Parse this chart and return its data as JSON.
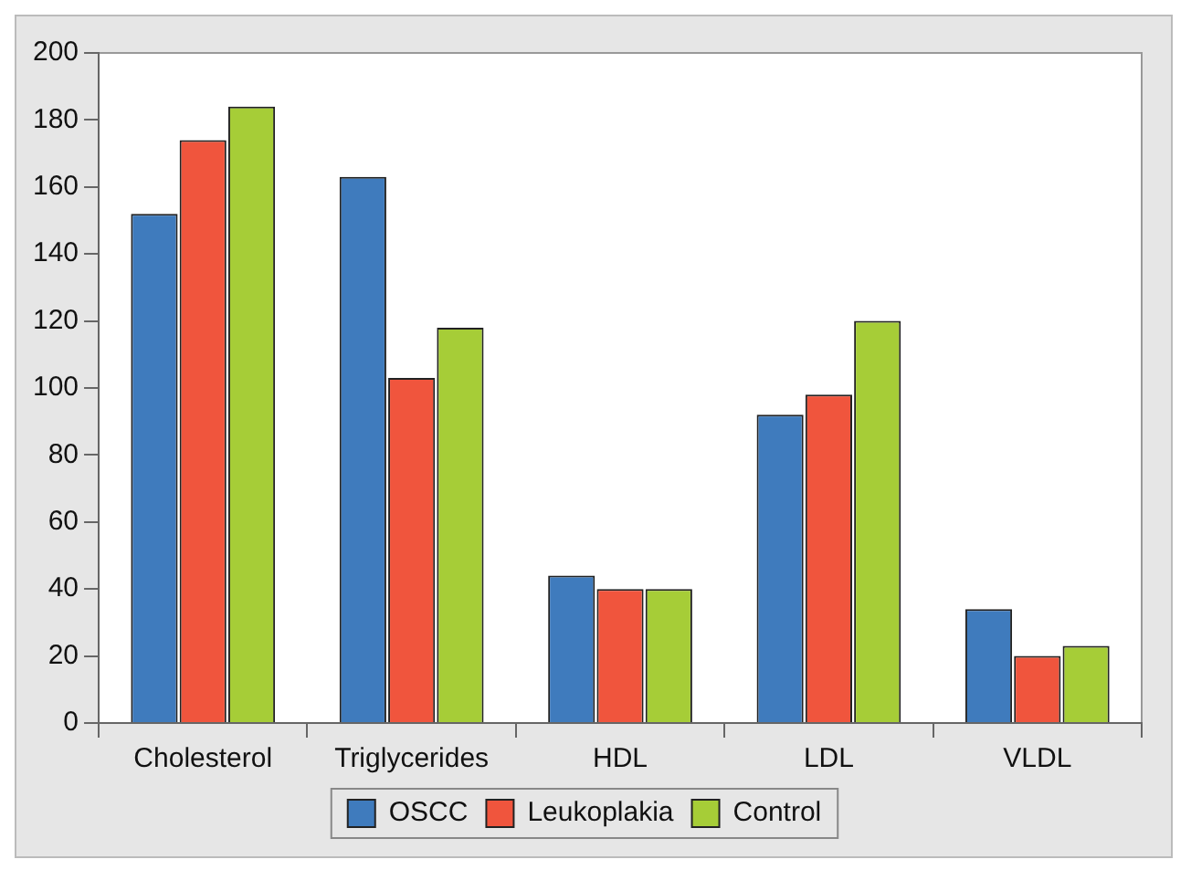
{
  "chart_data": {
    "type": "bar",
    "categories": [
      "Cholesterol",
      "Triglycerides",
      "HDL",
      "LDL",
      "VLDL"
    ],
    "series": [
      {
        "name": "OSCC",
        "color": "#3f7bbd",
        "values": [
          152,
          163,
          44,
          92,
          34
        ]
      },
      {
        "name": "Leukoplakia",
        "color": "#f0553d",
        "values": [
          174,
          103,
          40,
          98,
          20
        ]
      },
      {
        "name": "Control",
        "color": "#a6cd37",
        "values": [
          184,
          118,
          40,
          120,
          23
        ]
      }
    ],
    "ylim": [
      0,
      200
    ],
    "yticks": [
      0,
      20,
      40,
      60,
      80,
      100,
      120,
      140,
      160,
      180,
      200
    ],
    "grid": false,
    "legend": "bottom"
  }
}
